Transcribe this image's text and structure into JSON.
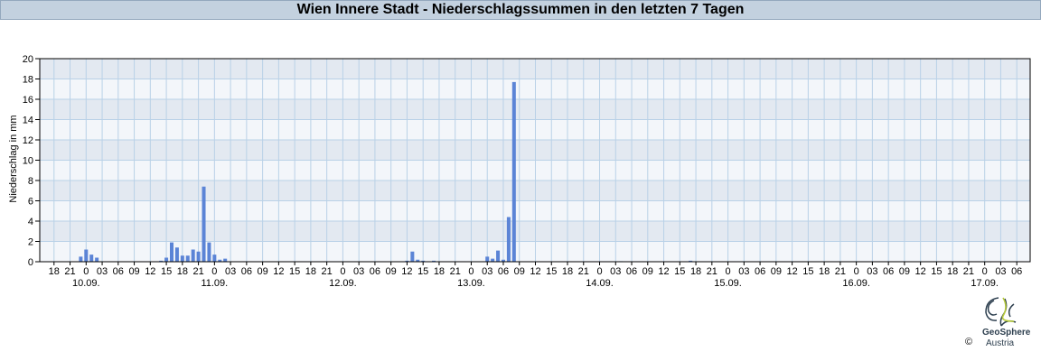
{
  "chart_data": {
    "type": "bar",
    "title": "Wien Innere Stadt - Niederschlagssummen in den letzten 7 Tagen",
    "ylabel": "Niederschlag in mm",
    "xlabel": "",
    "ylim": [
      0,
      20
    ],
    "yticks": [
      0,
      2,
      4,
      6,
      8,
      10,
      12,
      14,
      16,
      18,
      20
    ],
    "xlim": [
      "09.09. 15:20",
      "17.09. 08:30"
    ],
    "x_tick_interval_hours": 3,
    "date_labels": [
      "10.09.",
      "11.09.",
      "12.09.",
      "13.09.",
      "14.09.",
      "15.09.",
      "16.09.",
      "17.09."
    ],
    "grid": true,
    "bar_color": "#5b84d6",
    "series": [
      {
        "values": [
          [
            "09.09. 23:00",
            0.5
          ],
          [
            "10.09. 00:00",
            1.2
          ],
          [
            "10.09. 01:00",
            0.7
          ],
          [
            "10.09. 02:00",
            0.4
          ],
          [
            "10.09. 14:00",
            0.1
          ],
          [
            "10.09. 15:00",
            0.4
          ],
          [
            "10.09. 16:00",
            1.9
          ],
          [
            "10.09. 17:00",
            1.4
          ],
          [
            "10.09. 18:00",
            0.6
          ],
          [
            "10.09. 19:00",
            0.6
          ],
          [
            "10.09. 20:00",
            1.2
          ],
          [
            "10.09. 21:00",
            1.0
          ],
          [
            "10.09. 22:00",
            7.4
          ],
          [
            "10.09. 23:00",
            1.9
          ],
          [
            "11.09. 00:00",
            0.7
          ],
          [
            "11.09. 01:00",
            0.2
          ],
          [
            "11.09. 02:00",
            0.3
          ],
          [
            "12.09. 12:00",
            0.1
          ],
          [
            "12.09. 13:00",
            1.0
          ],
          [
            "12.09. 14:00",
            0.2
          ],
          [
            "12.09. 15:00",
            0.1
          ],
          [
            "12.09. 17:00",
            0.1
          ],
          [
            "13.09. 03:00",
            0.5
          ],
          [
            "13.09. 04:00",
            0.3
          ],
          [
            "13.09. 05:00",
            1.1
          ],
          [
            "13.09. 06:00",
            0.2
          ],
          [
            "13.09. 07:00",
            4.4
          ],
          [
            "13.09. 08:00",
            17.7
          ],
          [
            "14.09. 04:00",
            0.05
          ],
          [
            "14.09. 17:00",
            0.1
          ]
        ]
      }
    ]
  },
  "logo": {
    "name": "GeoSphere",
    "sub": "Austria",
    "copyright": "©"
  }
}
